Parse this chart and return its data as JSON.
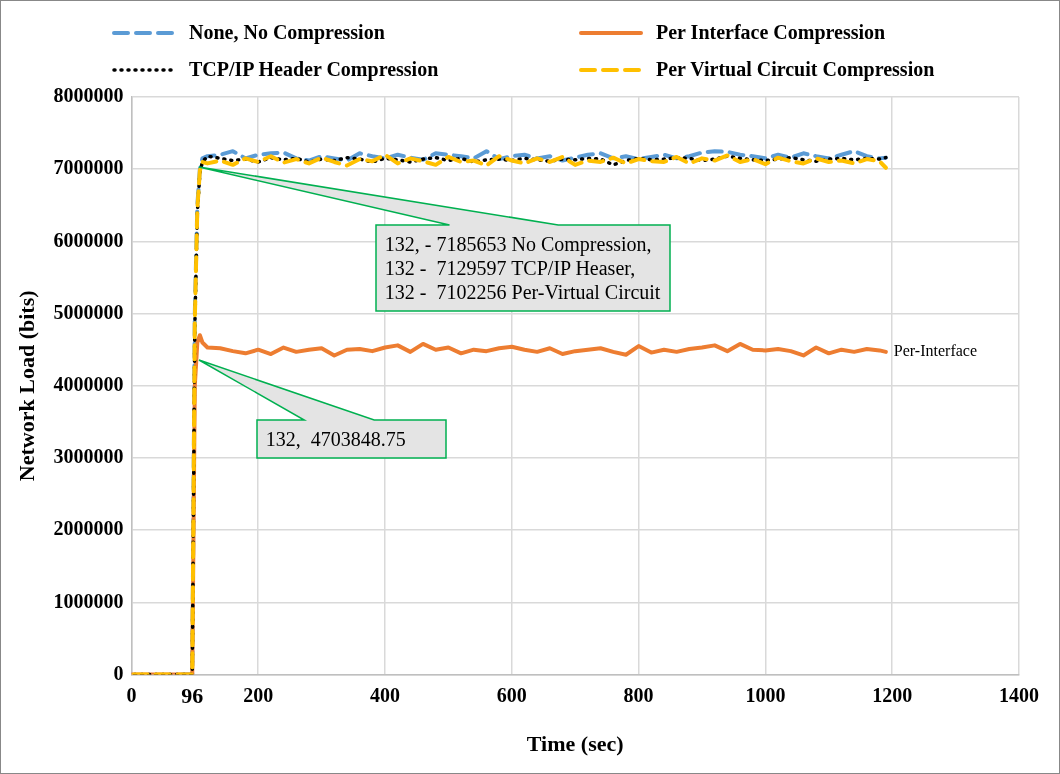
{
  "chart_data": {
    "type": "line",
    "xlabel": "Time (sec)",
    "ylabel": "Network Load (bits)",
    "x": [
      0,
      20,
      40,
      60,
      80,
      96,
      100,
      104,
      108,
      112,
      120,
      140,
      160,
      180,
      200,
      220,
      240,
      260,
      280,
      300,
      320,
      340,
      360,
      380,
      400,
      420,
      440,
      460,
      480,
      500,
      520,
      540,
      560,
      580,
      600,
      620,
      640,
      660,
      680,
      700,
      720,
      740,
      760,
      780,
      800,
      820,
      840,
      860,
      880,
      900,
      920,
      940,
      960,
      980,
      1000,
      1020,
      1040,
      1060,
      1080,
      1100,
      1120,
      1140,
      1160,
      1180,
      1190
    ],
    "series": [
      {
        "name": "None, No Compression",
        "color": "#5b9bd5",
        "line_style": "dashed",
        "values": [
          null,
          null,
          null,
          null,
          0,
          0,
          5000000,
          6500000,
          7000000,
          7150000,
          7180000,
          7200000,
          7250000,
          7150000,
          7200000,
          7220000,
          7230000,
          7150000,
          7120000,
          7180000,
          7150000,
          7120000,
          7220000,
          7180000,
          7150000,
          7200000,
          7160000,
          7130000,
          7220000,
          7200000,
          7180000,
          7150000,
          7250000,
          7140000,
          7180000,
          7200000,
          7150000,
          7180000,
          7120000,
          7160000,
          7200000,
          7220000,
          7150000,
          7180000,
          7140000,
          7170000,
          7200000,
          7150000,
          7180000,
          7230000,
          7250000,
          7240000,
          7200000,
          7180000,
          7150000,
          7200000,
          7160000,
          7220000,
          7180000,
          7150000,
          7200000,
          7250000,
          7180000,
          7150000,
          7160000
        ]
      },
      {
        "name": "Per Interface Compression",
        "color": "#ed7d31",
        "line_style": "solid",
        "values": [
          0,
          0,
          0,
          0,
          0,
          0,
          4000000,
          4600000,
          4700000,
          4600000,
          4530000,
          4520000,
          4480000,
          4450000,
          4500000,
          4440000,
          4530000,
          4470000,
          4500000,
          4520000,
          4420000,
          4500000,
          4510000,
          4480000,
          4530000,
          4560000,
          4470000,
          4580000,
          4500000,
          4530000,
          4450000,
          4500000,
          4480000,
          4520000,
          4540000,
          4500000,
          4470000,
          4520000,
          4440000,
          4480000,
          4500000,
          4520000,
          4470000,
          4430000,
          4550000,
          4460000,
          4500000,
          4470000,
          4510000,
          4530000,
          4560000,
          4480000,
          4580000,
          4500000,
          4490000,
          4510000,
          4480000,
          4420000,
          4530000,
          4450000,
          4500000,
          4470000,
          4510000,
          4490000,
          4470000
        ]
      },
      {
        "name": "TCP/IP Header Compression",
        "color": "#000000",
        "line_style": "dotted",
        "values": [
          0,
          0,
          0,
          0,
          0,
          0,
          4800000,
          6400000,
          6950000,
          7100000,
          7180000,
          7150000,
          7120000,
          7140000,
          7100000,
          7160000,
          7130000,
          7150000,
          7100000,
          7140000,
          7120000,
          7160000,
          7140000,
          7100000,
          7150000,
          7130000,
          7100000,
          7140000,
          7160000,
          7120000,
          7150000,
          7100000,
          7130000,
          7140000,
          7120000,
          7150000,
          7130000,
          7110000,
          7140000,
          7130000,
          7150000,
          7140000,
          7060000,
          7120000,
          7150000,
          7130000,
          7140000,
          7160000,
          7150000,
          7120000,
          7140000,
          7180000,
          7150000,
          7130000,
          7120000,
          7140000,
          7160000,
          7130000,
          7110000,
          7140000,
          7150000,
          7130000,
          7150000,
          7140000,
          7160000
        ]
      },
      {
        "name": "Per Virtual Circuit Compression",
        "color": "#ffc000",
        "line_style": "dashed",
        "values": [
          0,
          0,
          0,
          0,
          0,
          0,
          4900000,
          6450000,
          6980000,
          7100000,
          7080000,
          7120000,
          7060000,
          7150000,
          7100000,
          7180000,
          7090000,
          7140000,
          7080000,
          7160000,
          7100000,
          7050000,
          7140000,
          7110000,
          7200000,
          7080000,
          7150000,
          7110000,
          7060000,
          7170000,
          7100000,
          7120000,
          7050000,
          7180000,
          7120000,
          7080000,
          7150000,
          7100000,
          7170000,
          7060000,
          7120000,
          7100000,
          7160000,
          7080000,
          7140000,
          7110000,
          7100000,
          7170000,
          7080000,
          7150000,
          7120000,
          7190000,
          7100000,
          7140000,
          7070000,
          7160000,
          7110000,
          7080000,
          7150000,
          7100000,
          7120000,
          7080000,
          7140000,
          7110000,
          7020000
        ]
      }
    ],
    "xlim": [
      0,
      1400
    ],
    "xticks": [
      0,
      200,
      400,
      600,
      800,
      1000,
      1200,
      1400
    ],
    "ylim": [
      0,
      8000000
    ],
    "yticks": [
      0,
      1000000,
      2000000,
      3000000,
      4000000,
      5000000,
      6000000,
      7000000,
      8000000
    ],
    "grid": true,
    "legend": "top",
    "annotations": [
      "132, - 7185653 No Compression,\n132 -  7129597 TCP/IP Heaser,\n132 -  7102256 Per-Virtual Circuit",
      "132,  4703848.75",
      {
        "text": "Per-Interface",
        "x": 1190,
        "y": 4470000
      },
      {
        "text": "96",
        "x": 96,
        "y": 0
      }
    ]
  }
}
